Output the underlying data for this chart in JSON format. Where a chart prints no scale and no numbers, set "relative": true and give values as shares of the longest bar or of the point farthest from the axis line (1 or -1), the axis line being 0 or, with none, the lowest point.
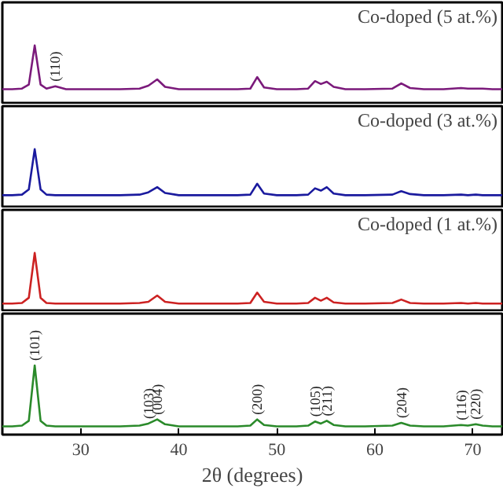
{
  "chart_data": [
    {
      "type": "line",
      "relative": true,
      "title": "Co-doped (5 at.%)",
      "xlim": [
        22,
        73
      ],
      "tick_labels": false,
      "x": [
        22,
        23,
        24,
        24.7,
        25.3,
        25.9,
        26.5,
        27.4,
        28.5,
        30,
        32,
        34,
        36,
        36.9,
        37.8,
        38.6,
        40,
        42,
        44,
        46,
        47.3,
        48.0,
        48.7,
        50,
        52,
        53.2,
        53.9,
        54.5,
        55.1,
        55.8,
        57,
        59,
        61.8,
        62.7,
        63.6,
        65,
        67,
        68.8,
        69.5,
        70.3,
        71,
        72,
        73
      ],
      "series": [
        {
          "color": "#7b1a7b",
          "values": [
            0.24,
            0.24,
            0.25,
            0.32,
            1,
            0.32,
            0.25,
            0.29,
            0.24,
            0.24,
            0.24,
            0.24,
            0.25,
            0.3,
            0.41,
            0.28,
            0.24,
            0.24,
            0.24,
            0.24,
            0.25,
            0.45,
            0.27,
            0.24,
            0.24,
            0.25,
            0.38,
            0.33,
            0.37,
            0.28,
            0.24,
            0.24,
            0.25,
            0.34,
            0.26,
            0.24,
            0.24,
            0.26,
            0.25,
            0.25,
            0.25,
            0.24,
            0.24
          ]
        }
      ],
      "annotations": [
        {
          "text": "(110)",
          "x": 27.4,
          "y": 0.29
        }
      ]
    },
    {
      "type": "line",
      "relative": true,
      "title": "Co-doped (3 at.%)",
      "xlim": [
        22,
        73
      ],
      "tick_labels": false,
      "x": [
        22,
        23,
        24,
        24.7,
        25.3,
        25.9,
        26.5,
        27.4,
        28.5,
        30,
        32,
        34,
        36,
        36.9,
        37.8,
        38.6,
        40,
        42,
        44,
        46,
        47.3,
        48.0,
        48.7,
        50,
        52,
        53.2,
        53.9,
        54.5,
        55.1,
        55.8,
        57,
        59,
        61.8,
        62.7,
        63.6,
        65,
        67,
        68.8,
        69.5,
        70.3,
        71,
        72,
        73
      ],
      "series": [
        {
          "color": "#1a1a9e",
          "values": [
            0.2,
            0.2,
            0.21,
            0.3,
            1,
            0.3,
            0.21,
            0.2,
            0.2,
            0.2,
            0.2,
            0.2,
            0.21,
            0.25,
            0.34,
            0.24,
            0.2,
            0.2,
            0.2,
            0.2,
            0.21,
            0.4,
            0.23,
            0.2,
            0.2,
            0.21,
            0.32,
            0.28,
            0.34,
            0.23,
            0.2,
            0.2,
            0.21,
            0.27,
            0.22,
            0.2,
            0.2,
            0.21,
            0.2,
            0.21,
            0.2,
            0.2,
            0.2
          ]
        }
      ]
    },
    {
      "type": "line",
      "relative": true,
      "title": "Co-doped (1 at.%)",
      "xlim": [
        22,
        73
      ],
      "tick_labels": false,
      "x": [
        22,
        23,
        24,
        24.7,
        25.3,
        25.9,
        26.5,
        27.4,
        28.5,
        30,
        32,
        34,
        36,
        36.9,
        37.8,
        38.6,
        40,
        42,
        44,
        46,
        47.3,
        48.0,
        48.7,
        50,
        52,
        53.2,
        53.9,
        54.5,
        55.1,
        55.8,
        57,
        59,
        61.8,
        62.7,
        63.6,
        65,
        67,
        68.8,
        69.5,
        70.3,
        71,
        72,
        73
      ],
      "series": [
        {
          "color": "#cc2222",
          "values": [
            0.12,
            0.12,
            0.13,
            0.22,
            1,
            0.22,
            0.13,
            0.12,
            0.12,
            0.12,
            0.12,
            0.12,
            0.13,
            0.15,
            0.26,
            0.15,
            0.12,
            0.12,
            0.12,
            0.12,
            0.13,
            0.31,
            0.15,
            0.12,
            0.12,
            0.13,
            0.22,
            0.17,
            0.22,
            0.14,
            0.12,
            0.12,
            0.13,
            0.19,
            0.13,
            0.12,
            0.12,
            0.13,
            0.12,
            0.13,
            0.12,
            0.12,
            0.12
          ]
        }
      ]
    },
    {
      "type": "line",
      "relative": true,
      "xlabel": "2θ (degrees)",
      "xlim": [
        22,
        73
      ],
      "xticks": [
        30,
        40,
        50,
        60,
        70
      ],
      "tick_labels": "x",
      "x": [
        22,
        23,
        24,
        24.7,
        25.3,
        25.9,
        26.5,
        27.4,
        28.5,
        30,
        32,
        34,
        36,
        36.9,
        37.8,
        38.6,
        40,
        42,
        44,
        46,
        47.3,
        48.0,
        48.7,
        50,
        52,
        53.2,
        53.9,
        54.5,
        55.1,
        55.8,
        57,
        59,
        61.8,
        62.7,
        63.6,
        65,
        67,
        68.8,
        69.5,
        70.3,
        71,
        72,
        73
      ],
      "series": [
        {
          "color": "#2a8a2a",
          "values": [
            0.12,
            0.12,
            0.13,
            0.2,
            1,
            0.2,
            0.13,
            0.12,
            0.12,
            0.12,
            0.12,
            0.12,
            0.13,
            0.16,
            0.22,
            0.15,
            0.12,
            0.12,
            0.12,
            0.12,
            0.13,
            0.22,
            0.14,
            0.12,
            0.12,
            0.13,
            0.19,
            0.16,
            0.2,
            0.14,
            0.12,
            0.12,
            0.13,
            0.17,
            0.13,
            0.12,
            0.12,
            0.14,
            0.13,
            0.15,
            0.13,
            0.12,
            0.12
          ]
        }
      ],
      "annotations": [
        {
          "text": "(101)",
          "x": 25.3,
          "y": 1
        },
        {
          "text": "(103)",
          "x": 36.9,
          "y": 0.16
        },
        {
          "text": "(004)",
          "x": 37.8,
          "y": 0.22
        },
        {
          "text": "(200)",
          "x": 48.0,
          "y": 0.22
        },
        {
          "text": "(105)",
          "x": 53.9,
          "y": 0.19
        },
        {
          "text": "(211)",
          "x": 55.1,
          "y": 0.2
        },
        {
          "text": "(204)",
          "x": 62.7,
          "y": 0.17
        },
        {
          "text": "(116)",
          "x": 68.8,
          "y": 0.14
        },
        {
          "text": "(220)",
          "x": 70.3,
          "y": 0.15
        }
      ]
    }
  ]
}
